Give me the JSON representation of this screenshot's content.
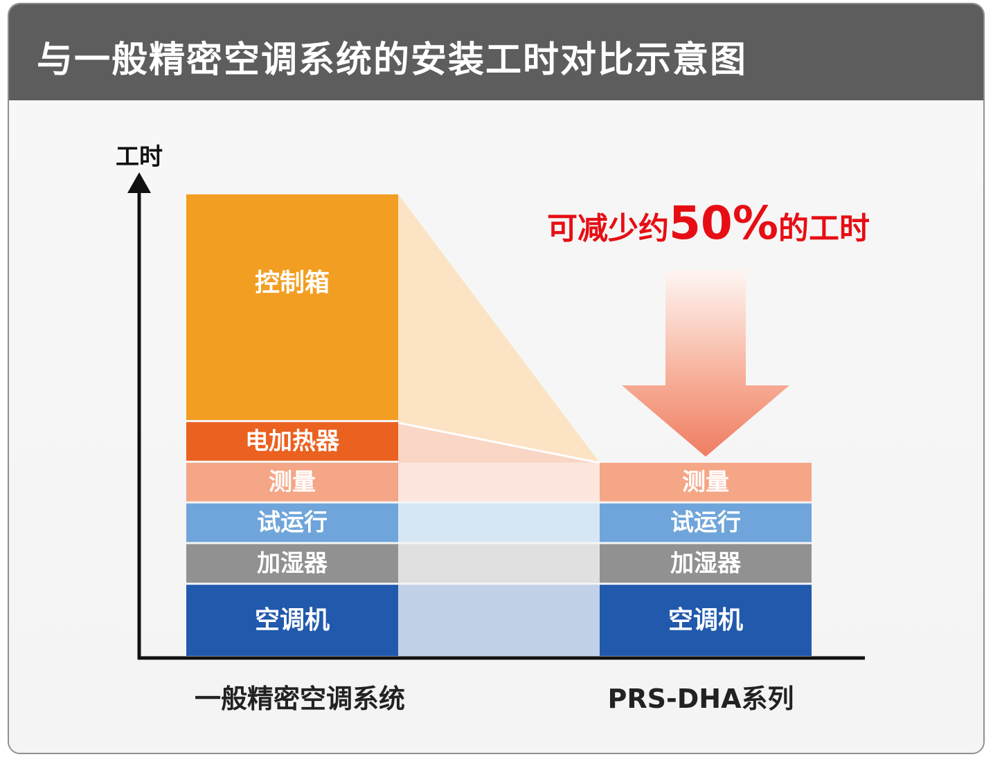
{
  "title": "与一般精密空调系统的安装工时对比示意图",
  "chart_data": {
    "type": "bar",
    "stacked": true,
    "ylabel": "工时",
    "categories": [
      "一般精密空调系统",
      "PRS-DHA系列"
    ],
    "layers": [
      "空调机",
      "加湿器",
      "试运行",
      "测量",
      "电加热器",
      "控制箱"
    ],
    "series": [
      {
        "name": "空调机",
        "color": "#2159ad",
        "values": [
          1.8,
          1.8
        ]
      },
      {
        "name": "加湿器",
        "color": "#919191",
        "values": [
          1.0,
          1.0
        ]
      },
      {
        "name": "试运行",
        "color": "#6fa5da",
        "values": [
          1.0,
          1.0
        ]
      },
      {
        "name": "测量",
        "color": "#f4a686",
        "values": [
          1.0,
          1.0
        ]
      },
      {
        "name": "电加热器",
        "color": "#ea6120",
        "values": [
          1.0,
          0
        ]
      },
      {
        "name": "控制箱",
        "color": "#f29e22",
        "values": [
          5.6,
          0
        ]
      }
    ],
    "ylim": [
      0,
      12.0
    ],
    "annotation": {
      "prefix": "可减少约",
      "value": "50%",
      "suffix": "的工时"
    },
    "grid": false,
    "legend": "none"
  }
}
